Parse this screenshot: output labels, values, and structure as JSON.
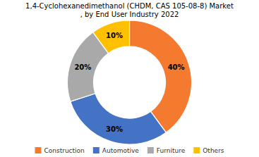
{
  "chart_data": {
    "type": "donut",
    "title": "1,4-Cyclohexanedimethanol (CHDM, CAS 105-08-8) Market\n, by End User Industry 2022",
    "categories": [
      "Construction",
      "Automotive",
      "Furniture",
      "Others"
    ],
    "values": [
      40,
      30,
      20,
      10
    ],
    "value_labels": [
      "40%",
      "30%",
      "20%",
      "10%"
    ],
    "colors": [
      "#F47A30",
      "#4472C4",
      "#A9A9A9",
      "#FFC000"
    ],
    "data_labels": true,
    "legend": "bottom"
  }
}
